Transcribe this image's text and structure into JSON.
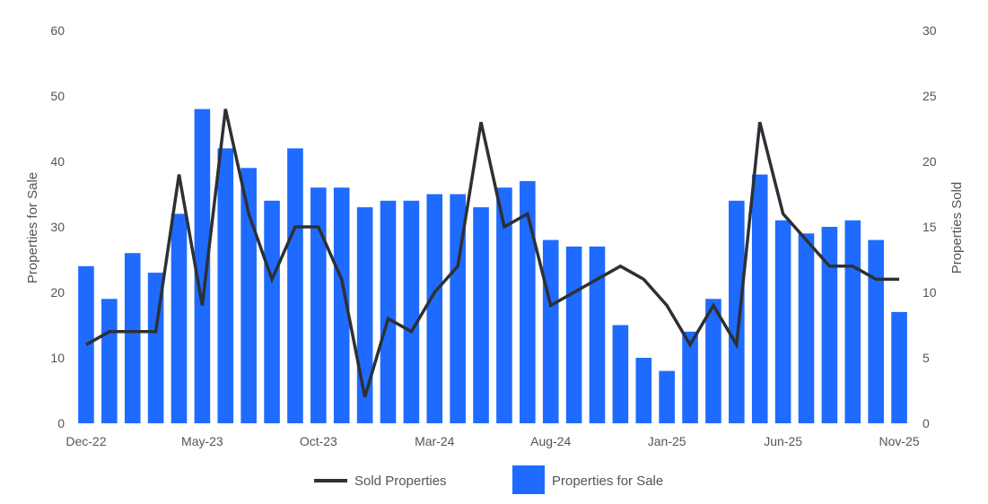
{
  "chart_data": {
    "type": "bar",
    "categories": [
      "Dec-22",
      "Jan-23",
      "Feb-23",
      "Mar-23",
      "Apr-23",
      "May-23",
      "Jun-23",
      "Jul-23",
      "Aug-23",
      "Sep-23",
      "Oct-23",
      "Nov-23",
      "Dec-23",
      "Jan-24",
      "Feb-24",
      "Mar-24",
      "Apr-24",
      "May-24",
      "Jun-24",
      "Jul-24",
      "Aug-24",
      "Sep-24",
      "Oct-24",
      "Nov-24",
      "Dec-24",
      "Jan-25",
      "Feb-25",
      "Mar-25",
      "Apr-25",
      "May-25",
      "Jun-25",
      "Jul-25",
      "Aug-25",
      "Sep-25",
      "Oct-25",
      "Nov-25"
    ],
    "x_tick_labels": [
      "Dec-22",
      "May-23",
      "Oct-23",
      "Mar-24",
      "Aug-24",
      "Jan-25",
      "Jun-25",
      "Nov-25"
    ],
    "series": [
      {
        "name": "Properties for Sale",
        "type": "bar",
        "axis": "left",
        "color": "#1f6bff",
        "values": [
          24,
          19,
          26,
          23,
          32,
          48,
          42,
          39,
          34,
          42,
          36,
          36,
          33,
          34,
          34,
          35,
          35,
          33,
          36,
          37,
          28,
          27,
          27,
          15,
          10,
          8,
          14,
          19,
          34,
          38,
          31,
          29,
          30,
          31,
          28,
          17
        ]
      },
      {
        "name": "Sold Properties",
        "type": "line",
        "axis": "right",
        "color": "#2d3035",
        "values": [
          6,
          7,
          7,
          7,
          19,
          9,
          24,
          16,
          11,
          15,
          15,
          11,
          2,
          8,
          7,
          10,
          12,
          23,
          15,
          16,
          9,
          10,
          11,
          12,
          11,
          9,
          6,
          9,
          6,
          23,
          16,
          14,
          12,
          12,
          11,
          11
        ]
      }
    ],
    "y_left": {
      "label": "Properties for Sale",
      "range": [
        0,
        60
      ],
      "ticks": [
        "0",
        "10",
        "20",
        "30",
        "40",
        "50",
        "60"
      ]
    },
    "y_right": {
      "label": "Properties Sold",
      "range": [
        0,
        30
      ],
      "ticks": [
        "0",
        "5",
        "10",
        "15",
        "20",
        "25",
        "30"
      ]
    },
    "grid": false,
    "legend": {
      "position": "bottom",
      "items": [
        {
          "label": "Sold Properties",
          "symbol": "line",
          "color": "#2d3035"
        },
        {
          "label": "Properties for Sale",
          "symbol": "box",
          "color": "#1f6bff"
        }
      ]
    }
  }
}
